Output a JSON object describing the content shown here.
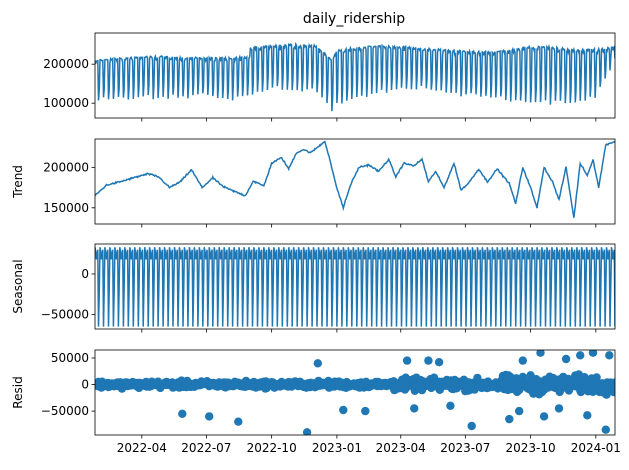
{
  "chart_data": {
    "type": "line",
    "title": "daily_ridership",
    "x_tick_labels": [
      "2022-04",
      "2022-07",
      "2022-10",
      "2023-01",
      "2023-04",
      "2023-07",
      "2023-10",
      "2024-01"
    ],
    "x_tick_dates": [
      "2022-04-01",
      "2022-07-01",
      "2022-10-01",
      "2023-01-01",
      "2023-04-01",
      "2023-07-01",
      "2023-10-01",
      "2024-01-01"
    ],
    "xlim": [
      "2022-01-25",
      "2024-01-28"
    ],
    "panels": [
      {
        "key": "observed",
        "ylabel": "",
        "type": "line",
        "ylim": [
          62000,
          280000
        ],
        "yticks": [
          100000,
          200000
        ],
        "ytick_labels": [
          "100000",
          "200000"
        ],
        "series": {
          "x": [
            "2022-01-25",
            "2022-02-01",
            "2022-03-01",
            "2022-04-01",
            "2022-05-01",
            "2022-06-01",
            "2022-07-01",
            "2022-08-01",
            "2022-08-31",
            "2022-09-01",
            "2022-10-01",
            "2022-11-01",
            "2022-12-01",
            "2022-12-15",
            "2022-12-25",
            "2023-01-01",
            "2023-02-01",
            "2023-03-01",
            "2023-04-01",
            "2023-05-01",
            "2023-06-01",
            "2023-07-01",
            "2023-08-01",
            "2023-09-01",
            "2023-10-01",
            "2023-11-01",
            "2023-12-01",
            "2024-01-01",
            "2024-01-28"
          ],
          "high": [
            210000,
            212000,
            216000,
            220000,
            222000,
            220000,
            218000,
            218000,
            220000,
            245000,
            250000,
            252000,
            250000,
            230000,
            210000,
            238000,
            245000,
            248000,
            248000,
            242000,
            238000,
            235000,
            232000,
            238000,
            248000,
            245000,
            238000,
            240000,
            245000
          ],
          "low": [
            105000,
            110000,
            112000,
            115000,
            118000,
            118000,
            122000,
            110000,
            120000,
            120000,
            140000,
            135000,
            130000,
            110000,
            80000,
            95000,
            120000,
            132000,
            140000,
            138000,
            128000,
            120000,
            120000,
            110000,
            100000,
            105000,
            100000,
            115000,
            215000
          ]
        }
      },
      {
        "key": "trend",
        "ylabel": "Trend",
        "type": "line",
        "ylim": [
          130000,
          235000
        ],
        "yticks": [
          150000,
          200000
        ],
        "ytick_labels": [
          "150000",
          "200000"
        ],
        "series": {
          "x": [
            "2022-01-25",
            "2022-02-10",
            "2022-03-01",
            "2022-03-20",
            "2022-04-10",
            "2022-04-25",
            "2022-05-10",
            "2022-05-25",
            "2022-06-10",
            "2022-06-25",
            "2022-07-10",
            "2022-07-25",
            "2022-08-10",
            "2022-08-25",
            "2022-09-05",
            "2022-09-20",
            "2022-10-01",
            "2022-10-15",
            "2022-10-25",
            "2022-11-05",
            "2022-11-15",
            "2022-11-25",
            "2022-12-05",
            "2022-12-15",
            "2022-12-22",
            "2022-12-30",
            "2023-01-10",
            "2023-01-20",
            "2023-02-01",
            "2023-02-15",
            "2023-03-01",
            "2023-03-15",
            "2023-03-25",
            "2023-04-05",
            "2023-04-20",
            "2023-05-01",
            "2023-05-10",
            "2023-05-20",
            "2023-06-01",
            "2023-06-15",
            "2023-06-25",
            "2023-07-05",
            "2023-07-20",
            "2023-08-01",
            "2023-08-15",
            "2023-09-01",
            "2023-09-10",
            "2023-09-20",
            "2023-10-01",
            "2023-10-10",
            "2023-10-20",
            "2023-11-01",
            "2023-11-10",
            "2023-11-20",
            "2023-12-01",
            "2023-12-10",
            "2023-12-20",
            "2023-12-28",
            "2024-01-05",
            "2024-01-15",
            "2024-01-28"
          ],
          "y": [
            165000,
            178000,
            182000,
            187000,
            192000,
            188000,
            175000,
            182000,
            197000,
            175000,
            187000,
            176000,
            170000,
            165000,
            183000,
            177000,
            205000,
            212000,
            198000,
            218000,
            222000,
            218000,
            225000,
            232000,
            210000,
            180000,
            150000,
            178000,
            200000,
            203000,
            195000,
            210000,
            188000,
            205000,
            202000,
            210000,
            182000,
            195000,
            175000,
            205000,
            172000,
            180000,
            198000,
            182000,
            198000,
            180000,
            155000,
            200000,
            175000,
            150000,
            200000,
            182000,
            160000,
            200000,
            138000,
            205000,
            190000,
            210000,
            175000,
            228000,
            232000
          ]
        }
      },
      {
        "key": "seasonal",
        "ylabel": "Seasonal",
        "type": "line",
        "ylim": [
          -68000,
          37000
        ],
        "yticks": [
          -50000,
          0
        ],
        "ytick_labels": [
          "−50000",
          "0"
        ],
        "period_days": 7,
        "max": 33000,
        "min": -65000
      },
      {
        "key": "resid",
        "ylabel": "Resid",
        "type": "scatter",
        "ylim": [
          -95000,
          65000
        ],
        "yticks": [
          -50000,
          0,
          50000
        ],
        "ytick_labels": [
          "−50000",
          "0",
          "50000"
        ],
        "baseline": 0,
        "outliers": [
          [
            "2022-05-28",
            -55000
          ],
          [
            "2022-07-05",
            -60000
          ],
          [
            "2022-08-15",
            -70000
          ],
          [
            "2022-11-20",
            -90000
          ],
          [
            "2023-01-10",
            -48000
          ],
          [
            "2023-02-10",
            -50000
          ],
          [
            "2023-04-20",
            -45000
          ],
          [
            "2023-06-10",
            -40000
          ],
          [
            "2023-07-10",
            -78000
          ],
          [
            "2023-09-01",
            -65000
          ],
          [
            "2023-09-15",
            -50000
          ],
          [
            "2023-10-20",
            -60000
          ],
          [
            "2023-11-10",
            -45000
          ],
          [
            "2023-12-20",
            -58000
          ],
          [
            "2024-01-15",
            -85000
          ],
          [
            "2022-12-05",
            40000
          ],
          [
            "2023-04-10",
            45000
          ],
          [
            "2023-05-10",
            45000
          ],
          [
            "2023-05-25",
            42000
          ],
          [
            "2023-09-20",
            45000
          ],
          [
            "2023-10-15",
            60000
          ],
          [
            "2023-11-20",
            48000
          ],
          [
            "2023-12-10",
            55000
          ],
          [
            "2023-12-28",
            60000
          ],
          [
            "2024-01-20",
            55000
          ]
        ]
      }
    ]
  }
}
